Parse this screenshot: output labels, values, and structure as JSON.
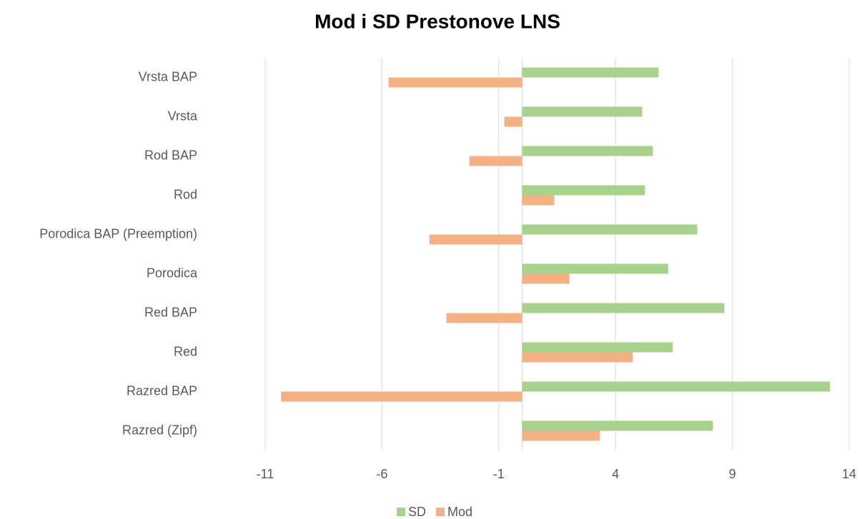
{
  "chart_data": {
    "type": "hbar",
    "title": "Mod i SD Prestonove LNS",
    "categories": [
      "Vrsta BAP",
      "Vrsta",
      "Rod BAP",
      "Rod",
      "Porodica BAP (Preemption)",
      "Porodica",
      "Red BAP",
      "Red",
      "Razred BAP",
      "Razred (Zipf)"
    ],
    "series": [
      {
        "name": "SD",
        "color": "#a9d18e",
        "values": [
          5.84,
          5.14,
          5.6,
          5.26,
          7.5,
          6.25,
          8.66,
          6.45,
          13.18,
          8.17
        ]
      },
      {
        "name": "Mod",
        "color": "#f4b183",
        "values": [
          -5.72,
          -0.76,
          -2.26,
          1.38,
          -3.97,
          2.02,
          -3.24,
          4.74,
          -10.32,
          3.33
        ]
      }
    ],
    "xlim": [
      -12,
      15
    ],
    "xticks": [
      -11,
      -6,
      -1,
      4,
      9,
      14
    ],
    "grid": true,
    "legend": "bottom"
  }
}
